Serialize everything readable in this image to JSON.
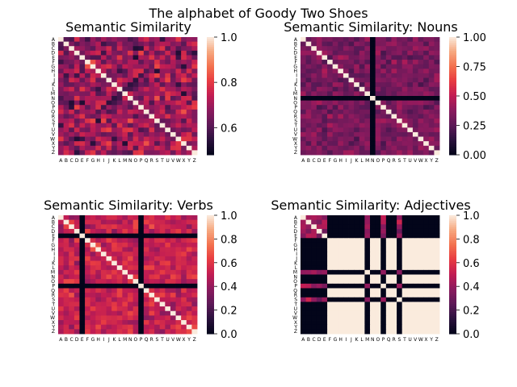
{
  "figure": {
    "title": "The alphabet of Goody Two Shoes"
  },
  "chart_data": [
    {
      "type": "heatmap",
      "title": "Semantic Similarity",
      "colormap": "rocket",
      "xticklabels": [
        "A",
        "B",
        "C",
        "D",
        "E",
        "F",
        "G",
        "H",
        "I",
        "J",
        "K",
        "L",
        "M",
        "N",
        "O",
        "P",
        "Q",
        "R",
        "S",
        "T",
        "U",
        "V",
        "W",
        "X",
        "Y",
        "Z"
      ],
      "yticklabels": [
        "A",
        "B",
        "C",
        "D",
        "E",
        "F",
        "G",
        "H",
        "I",
        "J",
        "K",
        "L",
        "M",
        "N",
        "O",
        "P",
        "Q",
        "R",
        "S",
        "T",
        "U",
        "V",
        "W",
        "X",
        "Y",
        "Z"
      ],
      "colorbar": {
        "min": 0.48,
        "max": 1.0,
        "ticks": [
          0.6,
          0.8,
          1.0
        ],
        "tick_labels": [
          "0.6",
          "0.8",
          "1.0"
        ]
      },
      "matrix_description": "26x26 symmetric similarity matrix, diagonal = 1.0, off-diagonal values mostly 0.55-0.85",
      "generator": {
        "seed": 11,
        "base": 0.68,
        "spread": 0.16,
        "zero_letters": []
      }
    },
    {
      "type": "heatmap",
      "title": "Semantic Similarity: Nouns",
      "colormap": "rocket",
      "xticklabels": [
        "A",
        "B",
        "C",
        "D",
        "E",
        "F",
        "G",
        "H",
        "I",
        "J",
        "K",
        "L",
        "M",
        "N",
        "O",
        "P",
        "Q",
        "R",
        "S",
        "T",
        "U",
        "V",
        "W",
        "X",
        "Y",
        "Z"
      ],
      "yticklabels": [
        "A",
        "B",
        "C",
        "D",
        "E",
        "F",
        "G",
        "H",
        "I",
        "J",
        "K",
        "L",
        "M",
        "N",
        "O",
        "P",
        "Q",
        "R",
        "S",
        "T",
        "U",
        "V",
        "W",
        "X",
        "Y",
        "Z"
      ],
      "colorbar": {
        "min": 0.0,
        "max": 1.0,
        "ticks": [
          0.0,
          0.25,
          0.5,
          0.75,
          1.0
        ],
        "tick_labels": [
          "0.00",
          "0.25",
          "0.50",
          "0.75",
          "1.00"
        ]
      },
      "matrix_description": "26x26 symmetric matrix, diagonal = 1.0, row/column N = 0, others mostly 0.2-0.5",
      "generator": {
        "seed": 23,
        "base": 0.33,
        "spread": 0.14,
        "zero_letters": [
          "N"
        ]
      }
    },
    {
      "type": "heatmap",
      "title": "Semantic Similarity: Verbs",
      "colormap": "rocket",
      "xticklabels": [
        "A",
        "B",
        "C",
        "D",
        "E",
        "F",
        "G",
        "H",
        "I",
        "J",
        "K",
        "L",
        "M",
        "N",
        "O",
        "P",
        "Q",
        "R",
        "S",
        "T",
        "U",
        "V",
        "W",
        "X",
        "Y",
        "Z"
      ],
      "yticklabels": [
        "A",
        "B",
        "C",
        "D",
        "E",
        "F",
        "G",
        "H",
        "I",
        "J",
        "K",
        "L",
        "M",
        "N",
        "O",
        "P",
        "Q",
        "R",
        "S",
        "T",
        "U",
        "V",
        "W",
        "X",
        "Y",
        "Z"
      ],
      "colorbar": {
        "min": 0.0,
        "max": 1.0,
        "ticks": [
          0.0,
          0.2,
          0.4,
          0.6,
          0.8,
          1.0
        ],
        "tick_labels": [
          "0.0",
          "0.2",
          "0.4",
          "0.6",
          "0.8",
          "1.0"
        ]
      },
      "matrix_description": "26x26 symmetric matrix, diagonal = 1.0, rows/columns E and P = 0, others mostly 0.35-0.7",
      "generator": {
        "seed": 37,
        "base": 0.52,
        "spread": 0.17,
        "zero_letters": [
          "E",
          "P"
        ]
      }
    },
    {
      "type": "heatmap",
      "title": "Semantic Similarity: Adjectives",
      "colormap": "rocket",
      "xticklabels": [
        "A",
        "B",
        "C",
        "D",
        "E",
        "F",
        "G",
        "H",
        "I",
        "J",
        "K",
        "L",
        "M",
        "N",
        "O",
        "P",
        "Q",
        "R",
        "S",
        "T",
        "U",
        "V",
        "W",
        "X",
        "Y",
        "Z"
      ],
      "yticklabels": [
        "A",
        "B",
        "C",
        "D",
        "E",
        "F",
        "G",
        "H",
        "I",
        "J",
        "K",
        "L",
        "M",
        "N",
        "O",
        "P",
        "Q",
        "R",
        "S",
        "T",
        "U",
        "V",
        "W",
        "X",
        "Y",
        "Z"
      ],
      "colorbar": {
        "min": 0.0,
        "max": 1.0,
        "ticks": [
          0.0,
          0.2,
          0.4,
          0.6,
          0.8,
          1.0
        ],
        "tick_labels": [
          "0.0",
          "0.2",
          "0.4",
          "0.6",
          "0.8",
          "1.0"
        ]
      },
      "matrix_description": "26x26 symmetric matrix, diagonal = 1.0; letters F,G,H,I,J,K,L,N,O,Q,R,T,U,V,W,X,Y,Z have no adjective (0 vs others, 1 among themselves); remaining pairs mostly 0.2-0.6",
      "generator": {
        "seed": 51,
        "base": 0.4,
        "spread": 0.17,
        "zero_letters": [],
        "missing_letters": [
          "F",
          "G",
          "H",
          "I",
          "J",
          "K",
          "L",
          "N",
          "O",
          "Q",
          "R",
          "T",
          "U",
          "V",
          "W",
          "X",
          "Y",
          "Z"
        ]
      }
    }
  ]
}
